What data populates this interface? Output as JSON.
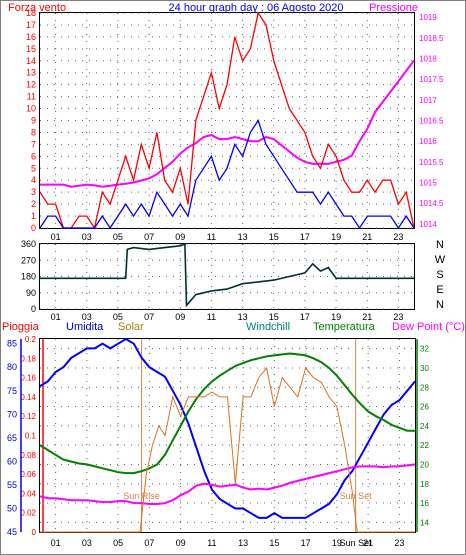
{
  "chart_data": [
    {
      "type": "line",
      "title": "24 hour graph day : 06 Agosto 2020",
      "left_axis_label": "Forza vento",
      "right_axis_label": "Pressione",
      "x_ticks": [
        "01",
        "03",
        "05",
        "07",
        "09",
        "11",
        "13",
        "15",
        "17",
        "19",
        "21",
        "23"
      ],
      "left_ticks": [
        "0",
        "1",
        "2",
        "3",
        "4",
        "5",
        "6",
        "7",
        "8",
        "9",
        "10",
        "11",
        "12",
        "13",
        "14",
        "15",
        "16",
        "17",
        "18"
      ],
      "right_ticks": [
        "1014",
        "1014.5",
        "1015",
        "1015.5",
        "1016",
        "1016.5",
        "1017",
        "1017.5",
        "1018",
        "1018.5",
        "1019"
      ],
      "ylim_left": [
        0,
        18
      ],
      "ylim_right": [
        1013.9,
        1019.1
      ],
      "xlim": [
        0,
        24
      ],
      "colors": {
        "gust": "#ff0000",
        "wind": "#0000ff",
        "pressure": "#ff00ff",
        "title": "#0000ff"
      },
      "series": [
        {
          "key": "pressure",
          "axis": "right",
          "x": [
            0,
            0.5,
            1,
            1.5,
            2,
            2.5,
            3,
            3.5,
            4,
            4.5,
            5,
            5.5,
            6,
            6.5,
            7,
            7.5,
            8,
            8.5,
            9,
            9.5,
            10,
            10.5,
            11,
            11.5,
            12,
            12.5,
            13,
            13.5,
            14,
            14.5,
            15,
            15.5,
            16,
            16.5,
            17,
            17.5,
            18,
            18.5,
            19,
            19.5,
            20,
            20.5,
            21,
            21.5,
            22,
            22.5,
            23,
            23.5,
            24
          ],
          "values": [
            1014.95,
            1014.95,
            1014.95,
            1014.95,
            1014.9,
            1014.92,
            1014.95,
            1014.93,
            1014.9,
            1014.92,
            1014.95,
            1014.97,
            1015.0,
            1015.05,
            1015.1,
            1015.2,
            1015.35,
            1015.5,
            1015.7,
            1015.85,
            1015.95,
            1016.1,
            1016.15,
            1016.05,
            1016.05,
            1016.1,
            1016.05,
            1016.0,
            1016.0,
            1016.1,
            1016.05,
            1015.9,
            1015.75,
            1015.6,
            1015.5,
            1015.45,
            1015.45,
            1015.45,
            1015.5,
            1015.55,
            1015.65,
            1016.0,
            1016.3,
            1016.7,
            1016.95,
            1017.2,
            1017.45,
            1017.7,
            1017.95
          ]
        },
        {
          "key": "gust",
          "axis": "left",
          "x": [
            0,
            0.5,
            1,
            1.5,
            2,
            2.5,
            3,
            3.5,
            4,
            4.5,
            5,
            5.5,
            6,
            6.5,
            7,
            7.5,
            8,
            8.5,
            9,
            9.5,
            10,
            10.5,
            11,
            11.5,
            12,
            12.5,
            13,
            13.5,
            14,
            14.5,
            15,
            15.5,
            16,
            16.5,
            17,
            17.5,
            18,
            18.5,
            19,
            19.5,
            20,
            20.5,
            21,
            21.5,
            22,
            22.5,
            23,
            23.5,
            24
          ],
          "values": [
            3,
            2,
            2,
            0,
            0,
            1,
            1,
            0,
            3,
            2,
            4,
            6,
            4,
            7,
            5,
            8,
            4,
            3,
            5,
            2,
            9,
            11,
            13,
            10,
            12,
            16,
            14,
            15,
            18,
            17,
            14,
            12,
            10,
            9,
            8,
            6,
            5,
            7,
            6,
            4,
            3,
            3,
            4,
            3,
            4,
            4,
            2,
            3,
            0
          ]
        },
        {
          "key": "wind",
          "axis": "left",
          "x": [
            0,
            0.5,
            1,
            1.5,
            2,
            2.5,
            3,
            3.5,
            4,
            4.5,
            5,
            5.5,
            6,
            6.5,
            7,
            7.5,
            8,
            8.5,
            9,
            9.5,
            10,
            10.5,
            11,
            11.5,
            12,
            12.5,
            13,
            13.5,
            14,
            14.5,
            15,
            15.5,
            16,
            16.5,
            17,
            17.5,
            18,
            18.5,
            19,
            19.5,
            20,
            20.5,
            21,
            21.5,
            22,
            22.5,
            23,
            23.5,
            24
          ],
          "values": [
            0,
            1,
            1,
            0,
            0,
            0,
            0,
            0,
            1,
            0,
            1,
            2,
            1,
            2,
            1,
            3,
            2,
            1,
            2,
            1,
            4,
            5,
            6,
            4,
            5,
            7,
            6,
            8,
            9,
            7,
            6,
            5,
            4,
            3,
            3,
            3,
            2,
            3,
            2,
            1,
            1,
            0,
            1,
            1,
            1,
            1,
            0,
            1,
            0
          ]
        }
      ]
    },
    {
      "type": "line",
      "left_axis_label": "",
      "right_axis_label": "",
      "x_ticks": [
        "01",
        "03",
        "05",
        "07",
        "09",
        "11",
        "13",
        "15",
        "17",
        "19",
        "21",
        "23"
      ],
      "left_ticks": [
        "0",
        "90",
        "180",
        "270",
        "360"
      ],
      "right_ticks": [
        "N",
        "W",
        "S",
        "E",
        "N"
      ],
      "ylim": [
        0,
        360
      ],
      "xlim": [
        0,
        24
      ],
      "colors": {
        "direction": "#003030"
      },
      "series": [
        {
          "key": "direction",
          "x": [
            0,
            1,
            2,
            3,
            4,
            5,
            5.5,
            5.6,
            6,
            7,
            8,
            9,
            9.3,
            9.4,
            10,
            10.5,
            11,
            12,
            13,
            14,
            15,
            16,
            17,
            17.5,
            18,
            18.5,
            19,
            20,
            21,
            22,
            23,
            24
          ],
          "values": [
            170,
            170,
            170,
            170,
            170,
            170,
            170,
            330,
            340,
            330,
            340,
            350,
            360,
            20,
            80,
            90,
            100,
            110,
            140,
            150,
            160,
            180,
            200,
            250,
            210,
            230,
            170,
            170,
            170,
            170,
            170,
            170
          ]
        }
      ]
    },
    {
      "type": "line",
      "axis_labels": {
        "rain": "Pioggia",
        "humidity": "Umidita",
        "solar": "Solar",
        "windchill": "Windchill",
        "temperature": "Temperatura",
        "dewpoint": "Dew Point (°C)"
      },
      "x_ticks": [
        "01",
        "03",
        "05",
        "07",
        "09",
        "11",
        "13",
        "15",
        "17",
        "19",
        "Sun Set",
        "21",
        "23"
      ],
      "rain_ticks": [
        "0",
        "0.02",
        "0.04",
        "0.06",
        "0.08",
        "0.1",
        "0.12",
        "0.14",
        "0.16",
        "0.18",
        "0.2"
      ],
      "humidity_ticks": [
        "45",
        "50",
        "55",
        "60",
        "65",
        "70",
        "75",
        "80",
        "85"
      ],
      "temp_ticks": [
        "14",
        "16",
        "18",
        "20",
        "22",
        "24",
        "26",
        "28",
        "30",
        "32"
      ],
      "ylim_rain": [
        0,
        0.2
      ],
      "ylim_humidity": [
        45,
        86
      ],
      "ylim_temp": [
        13,
        33
      ],
      "xlim": [
        0,
        24
      ],
      "annotations": [
        {
          "text": "Sun Rise",
          "x": 6.5
        },
        {
          "text": "Sun Set",
          "x": 20.2
        }
      ],
      "colors": {
        "rain": "#ff0000",
        "humidity": "#0000ff",
        "solar": "#e07020",
        "windchill": "#008080",
        "temperature": "#008000",
        "dewpoint": "#ff00ff",
        "sunline": "#e08040"
      },
      "series": [
        {
          "key": "humidity",
          "axis": "humidity",
          "x": [
            0,
            0.5,
            1,
            1.5,
            2,
            2.5,
            3,
            3.5,
            4,
            4.5,
            5,
            5.5,
            6,
            6.5,
            7,
            7.5,
            8,
            8.5,
            9,
            9.5,
            10,
            10.5,
            11,
            11.5,
            12,
            12.5,
            13,
            13.5,
            14,
            14.5,
            15,
            15.5,
            16,
            16.5,
            17,
            17.5,
            18,
            18.5,
            19,
            19.5,
            20,
            20.5,
            21,
            21.5,
            22,
            22.5,
            23,
            23.5,
            24
          ],
          "values": [
            76,
            77,
            79,
            80,
            82,
            83,
            84,
            84,
            85,
            84,
            85,
            86,
            85,
            82,
            80,
            79,
            78,
            75,
            72,
            68,
            63,
            58,
            54,
            52,
            51,
            50,
            50,
            49,
            48,
            48,
            49,
            48,
            48,
            48,
            48,
            49,
            50,
            51,
            53,
            56,
            58,
            61,
            64,
            67,
            70,
            72,
            73,
            75,
            77
          ]
        },
        {
          "key": "temperature",
          "axis": "temp",
          "x": [
            0,
            0.5,
            1,
            1.5,
            2,
            2.5,
            3,
            3.5,
            4,
            4.5,
            5,
            5.5,
            6,
            6.5,
            7,
            7.5,
            8,
            8.5,
            9,
            9.5,
            10,
            10.5,
            11,
            11.5,
            12,
            12.5,
            13,
            13.5,
            14,
            14.5,
            15,
            15.5,
            16,
            16.5,
            17,
            17.5,
            18,
            18.5,
            19,
            19.5,
            20,
            20.5,
            21,
            21.5,
            22,
            22.5,
            23,
            23.5,
            24
          ],
          "values": [
            22,
            21.5,
            21,
            20.5,
            20.3,
            20.1,
            20.0,
            19.8,
            19.6,
            19.4,
            19.2,
            19.1,
            19.1,
            19.3,
            19.6,
            20.0,
            21.0,
            22.5,
            24.0,
            25.5,
            26.8,
            27.8,
            28.6,
            29.2,
            29.7,
            30.2,
            30.5,
            30.8,
            31.0,
            31.2,
            31.3,
            31.4,
            31.5,
            31.4,
            31.3,
            31.0,
            30.6,
            30.0,
            29.2,
            28.2,
            27.2,
            26.3,
            25.5,
            25.0,
            24.6,
            24.1,
            23.8,
            23.5,
            23.5
          ]
        },
        {
          "key": "dewpoint",
          "axis": "temp",
          "x": [
            0,
            0.5,
            1,
            1.5,
            2,
            2.5,
            3,
            3.5,
            4,
            4.5,
            5,
            5.5,
            6,
            6.5,
            7,
            7.5,
            8,
            8.5,
            9,
            9.5,
            10,
            10.5,
            11,
            11.5,
            12,
            12.5,
            13,
            13.5,
            14,
            14.5,
            15,
            15.5,
            16,
            16.5,
            17,
            17.5,
            18,
            18.5,
            19,
            19.5,
            20,
            20.5,
            21,
            21.5,
            22,
            22.5,
            23,
            23.5,
            24
          ],
          "values": [
            16.7,
            16.5,
            16.5,
            16.4,
            16.3,
            16.3,
            16.3,
            16.2,
            16.1,
            16.1,
            16.2,
            16.2,
            16.0,
            16.0,
            15.9,
            15.9,
            16.0,
            16.3,
            16.8,
            17.2,
            17.8,
            18.0,
            17.9,
            17.7,
            17.8,
            17.9,
            17.6,
            17.4,
            17.5,
            17.4,
            17.6,
            17.8,
            18.1,
            18.3,
            18.5,
            18.7,
            18.9,
            19.1,
            19.3,
            19.5,
            19.7,
            19.8,
            19.8,
            19.8,
            19.7,
            19.8,
            19.8,
            19.9,
            20.0
          ]
        },
        {
          "key": "solar",
          "axis": "rain",
          "x": [
            0,
            6.4,
            6.8,
            7.2,
            7.6,
            8,
            8.5,
            9,
            9.5,
            10,
            10.5,
            11,
            11.5,
            12,
            12.5,
            13,
            13.5,
            14,
            14.5,
            15,
            15.5,
            16,
            16.5,
            17,
            17.5,
            18,
            18.5,
            19,
            19.5,
            20,
            20.3,
            24
          ],
          "values": [
            0,
            0,
            0.06,
            0.09,
            0.11,
            0.1,
            0.14,
            0.12,
            0.14,
            0.14,
            0.14,
            0.145,
            0.14,
            0.14,
            0.05,
            0.14,
            0.14,
            0.16,
            0.17,
            0.13,
            0.16,
            0.15,
            0.14,
            0.17,
            0.16,
            0.155,
            0.14,
            0.13,
            0.09,
            0.04,
            0,
            0
          ]
        }
      ]
    }
  ]
}
